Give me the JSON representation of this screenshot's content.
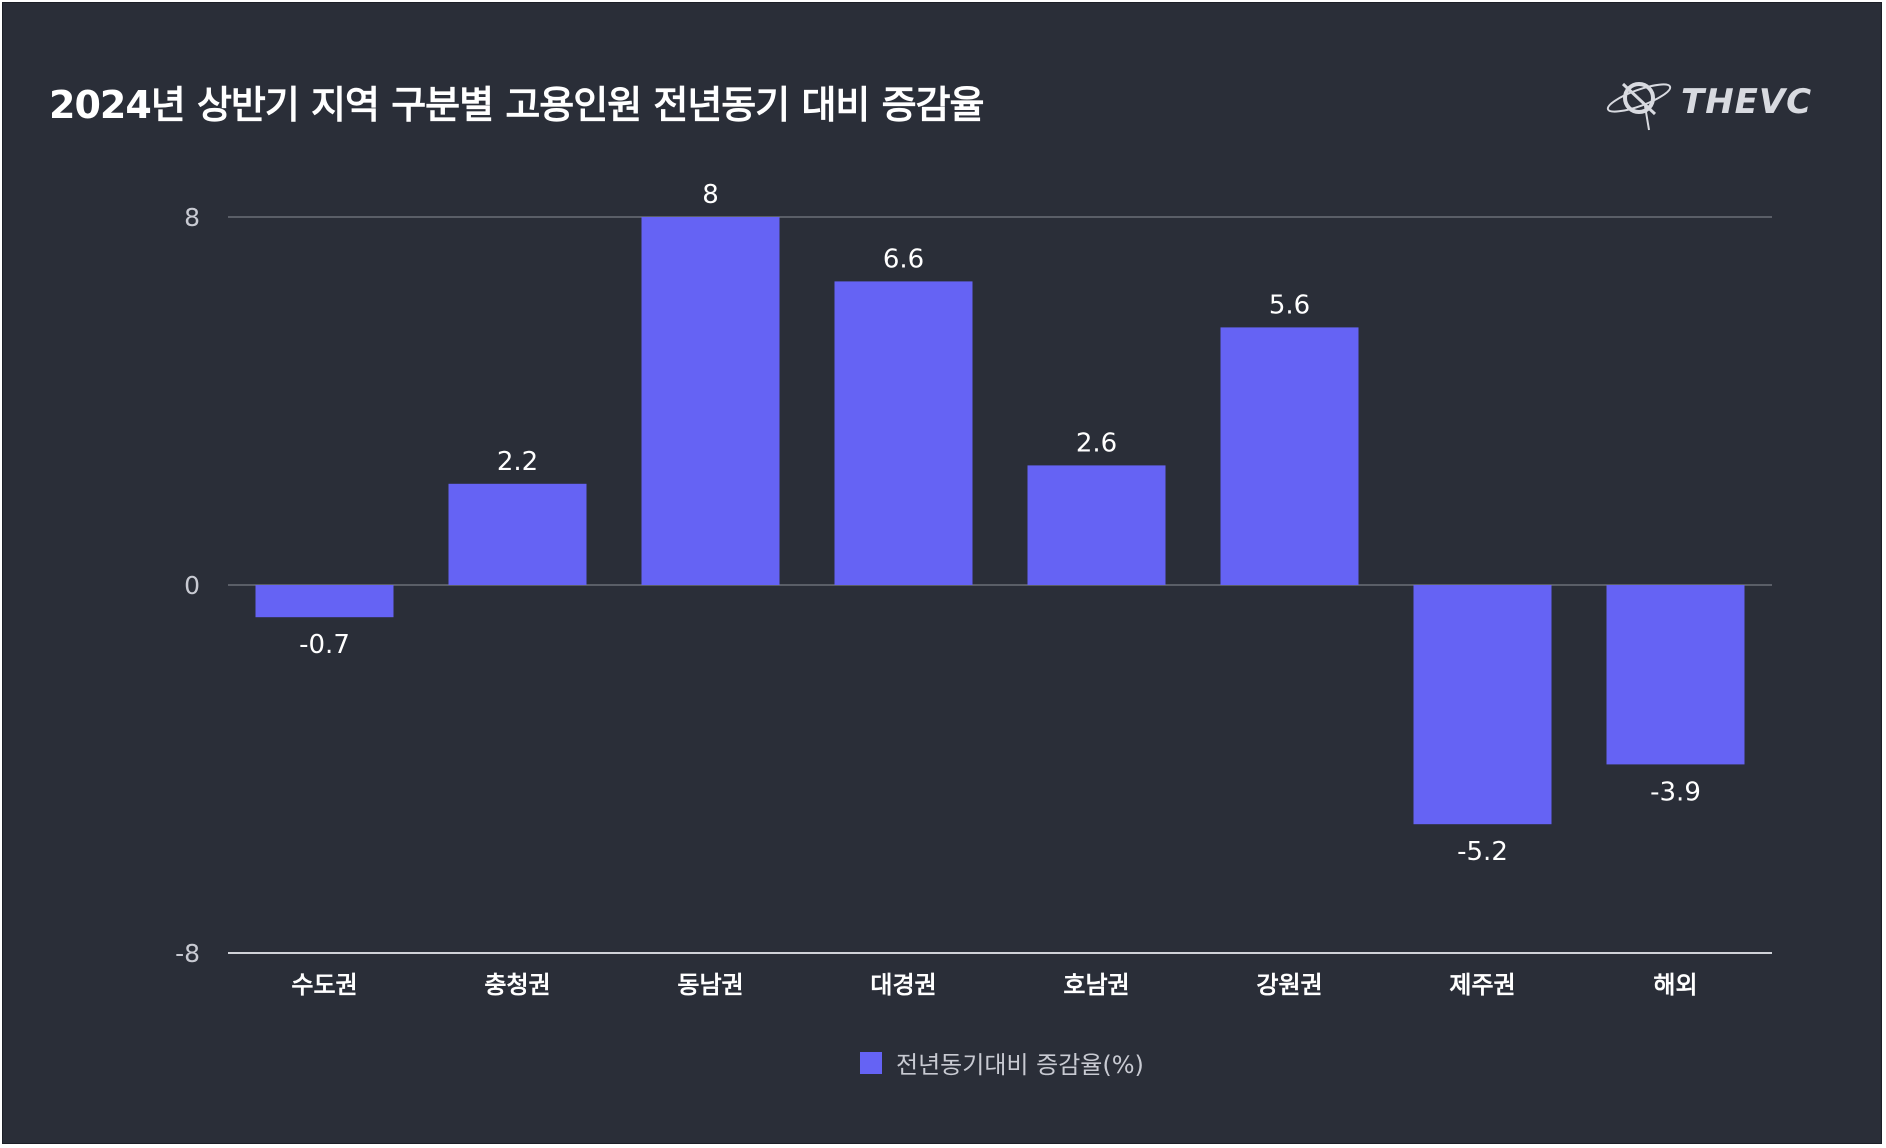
{
  "title": "2024년 상반기 지역 구분별 고용인원 전년동기 대비 증감율",
  "brand": {
    "name": "THEVC",
    "icon": "planet-orbit-icon"
  },
  "colors": {
    "bar": "#6563f4",
    "background": "#2a2e38",
    "text": "#ffffff",
    "grid": "#8a8d96"
  },
  "chart_data": {
    "type": "bar",
    "title": "2024년 상반기 지역 구분별 고용인원 전년동기 대비 증감율",
    "categories": [
      "수도권",
      "충청권",
      "동남권",
      "대경권",
      "호남권",
      "강원권",
      "제주권",
      "해외"
    ],
    "series": [
      {
        "name": "전년동기대비 증감율(%)",
        "values": [
          -0.7,
          2.2,
          8,
          6.6,
          2.6,
          5.6,
          -5.2,
          -3.9
        ]
      }
    ],
    "value_labels": [
      "-0.7",
      "2.2",
      "8",
      "6.6",
      "2.6",
      "5.6",
      "-5.2",
      "-3.9"
    ],
    "yticks": [
      8,
      0,
      -8
    ],
    "ytick_labels": [
      "8",
      "0",
      "-8"
    ],
    "ylim": [
      -8,
      8
    ],
    "xlabel": "",
    "ylabel": "",
    "legend_position": "bottom-center",
    "grid": true
  }
}
